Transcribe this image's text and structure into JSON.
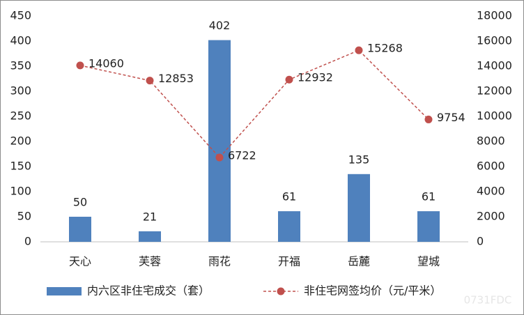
{
  "chart_data": {
    "type": "bar_line",
    "categories": [
      "天心",
      "芙蓉",
      "雨花",
      "开福",
      "岳麓",
      "望城"
    ],
    "series": [
      {
        "name": "内六区非住宅成交（套）",
        "color": "#4f81bd",
        "type": "bar",
        "values": [
          50,
          21,
          402,
          61,
          135,
          61
        ]
      },
      {
        "name": "非住宅网签均价（元/平米）",
        "color": "#c0504d",
        "type": "line",
        "axis": "y2",
        "values": [
          14060,
          12853,
          6722,
          12932,
          15268,
          9754
        ]
      }
    ],
    "ylim": [
      0,
      450
    ],
    "yticks": [
      0,
      50,
      100,
      150,
      200,
      250,
      300,
      350,
      400,
      450
    ],
    "y2lim": [
      0,
      18000
    ],
    "y2ticks": [
      0,
      2000,
      4000,
      6000,
      8000,
      10000,
      12000,
      14000,
      16000,
      18000
    ],
    "legend": "bottom",
    "grid": false,
    "watermark": "0731FDC"
  }
}
